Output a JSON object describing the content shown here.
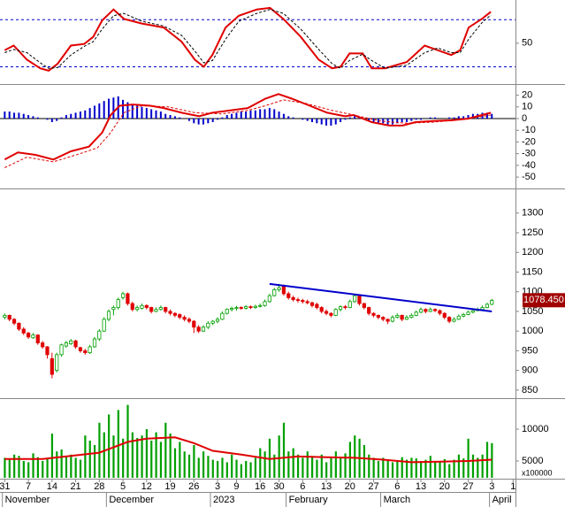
{
  "x_axis": {
    "xlim": [
      -1,
      108
    ],
    "xticks": [
      {
        "value": 0,
        "label": "31"
      },
      {
        "value": 5,
        "label": "7"
      },
      {
        "value": 10,
        "label": "14"
      },
      {
        "value": 15,
        "label": "21"
      },
      {
        "value": 20,
        "label": "28"
      },
      {
        "value": 25,
        "label": "5"
      },
      {
        "value": 30,
        "label": "12"
      },
      {
        "value": 35,
        "label": "19"
      },
      {
        "value": 40,
        "label": "26"
      },
      {
        "value": 45,
        "label": "3"
      },
      {
        "value": 49,
        "label": "9"
      },
      {
        "value": 54,
        "label": "16"
      },
      {
        "value": 58,
        "label": "30"
      },
      {
        "value": 63,
        "label": "6"
      },
      {
        "value": 68,
        "label": "13"
      },
      {
        "value": 73,
        "label": "20"
      },
      {
        "value": 78,
        "label": "27"
      },
      {
        "value": 83,
        "label": "6"
      },
      {
        "value": 88,
        "label": "13"
      },
      {
        "value": 93,
        "label": "20"
      },
      {
        "value": 98,
        "label": "27"
      },
      {
        "value": 103,
        "label": "3"
      },
      {
        "value": 107.5,
        "label": "1"
      }
    ],
    "months": [
      {
        "value": -0.5,
        "label": "November"
      },
      {
        "value": 21.5,
        "label": "December"
      },
      {
        "value": 43.5,
        "label": "2023"
      },
      {
        "value": 59.5,
        "label": "February"
      },
      {
        "value": 79.5,
        "label": "March"
      },
      {
        "value": 102.5,
        "label": "April"
      }
    ]
  },
  "chart_data": [
    {
      "type": "line",
      "ylim": [
        -2,
        105
      ],
      "yticks": [
        50
      ],
      "reference_lines": [
        80,
        20
      ],
      "reference_color": "#0000cc",
      "series": [
        {
          "color": "#e00000",
          "dash": false,
          "x": [
            0,
            1.9,
            4.7,
            7.5,
            9.3,
            11.2,
            14,
            16.8,
            18.7,
            20.6,
            23,
            25.2,
            29,
            33.6,
            37.4,
            40.2,
            42.1,
            43.9,
            46.7,
            49.5,
            53.3,
            56.1,
            58.9,
            62.6,
            66.4,
            69.2,
            71,
            72.9,
            75.7,
            77.6,
            80.4,
            85,
            88.8,
            91.6,
            94.4,
            96.3,
            98.1,
            100.9,
            102.8
          ],
          "values": [
            41,
            47,
            29,
            18,
            15,
            24,
            47,
            49,
            58,
            79,
            93,
            81,
            75,
            70,
            52,
            29,
            20,
            35,
            70,
            85,
            93,
            95,
            81,
            58,
            29,
            18,
            20,
            37,
            37,
            18,
            18,
            26,
            47,
            41,
            35,
            41,
            70,
            81,
            90
          ]
        },
        {
          "color": "#000000",
          "dash": true,
          "x": [
            0,
            1.9,
            4.7,
            7.5,
            9.3,
            11.2,
            14,
            16.8,
            18.7,
            20.6,
            23,
            25.2,
            29,
            33.6,
            37.4,
            40.2,
            42.1,
            43.9,
            46.7,
            49.5,
            53.3,
            56.1,
            58.9,
            62.6,
            66.4,
            69.2,
            71,
            72.9,
            75.7,
            77.6,
            80.4,
            85,
            88.8,
            91.6,
            94.4,
            96.3,
            98.1,
            100.9,
            102.8
          ],
          "values": [
            38,
            42,
            38,
            25,
            18,
            19,
            35,
            46,
            52,
            68,
            85,
            88,
            78,
            72,
            60,
            40,
            25,
            28,
            55,
            78,
            88,
            93,
            88,
            68,
            42,
            24,
            18,
            28,
            36,
            28,
            18,
            22,
            38,
            44,
            38,
            38,
            55,
            76,
            86
          ]
        }
      ]
    },
    {
      "type": "macd",
      "ylim": [
        -59,
        28
      ],
      "yticks": [
        20,
        10,
        0,
        -10,
        -20,
        -30,
        -40,
        -50
      ],
      "histogram_color": "#0000cc",
      "histogram": [
        6,
        6,
        5,
        5,
        4,
        3,
        2,
        1,
        0,
        -1,
        -3,
        -2,
        1,
        3,
        4,
        5,
        6,
        7,
        9,
        11,
        13,
        15,
        17,
        18,
        19,
        16,
        14,
        12,
        11,
        10,
        9,
        8,
        7,
        6,
        4,
        3,
        2,
        1,
        0,
        -2,
        -4,
        -5,
        -5,
        -4,
        -3,
        -1,
        1,
        3,
        4,
        5,
        6,
        6,
        7,
        7,
        8,
        8,
        9,
        8,
        6,
        4,
        2,
        1,
        0,
        -1,
        -2,
        -3,
        -4,
        -5,
        -6,
        -6,
        -5,
        -3,
        -1,
        1,
        2,
        1,
        0,
        -2,
        -3,
        -4,
        -4,
        -5,
        -5,
        -4,
        -3,
        -3,
        -2,
        -1,
        -1,
        0,
        1,
        1,
        0,
        0,
        1,
        1,
        2,
        2,
        3,
        4,
        4,
        5,
        5,
        4
      ],
      "series": [
        {
          "color": "#e00000",
          "dash": false,
          "x": [
            0,
            2.8,
            6.5,
            10.3,
            14,
            17.8,
            20.6,
            22.4,
            24.3,
            27.1,
            30.8,
            33.6,
            37.4,
            41.1,
            43.9,
            47.7,
            51.4,
            55.1,
            57.9,
            60.7,
            64.5,
            68.2,
            72,
            73.8,
            77.6,
            81.3,
            84.1,
            86.9,
            90.7,
            94.4,
            98.1,
            100.9,
            102.8
          ],
          "values": [
            -35,
            -29,
            -31,
            -35,
            -28,
            -24,
            -12,
            3,
            11,
            12,
            11,
            9,
            5,
            2,
            5,
            7,
            9,
            17,
            21,
            17,
            11,
            5,
            2,
            3,
            -3,
            -6,
            -6,
            -3,
            -2,
            -1.5,
            0,
            3,
            5
          ]
        },
        {
          "color": "#e00000",
          "dash": true,
          "x": [
            0,
            4.7,
            10.3,
            15.9,
            19.6,
            22.4,
            25.2,
            29,
            34.6,
            40.2,
            45.8,
            51.4,
            55.1,
            58.9,
            63.6,
            69.2,
            73.8,
            79.4,
            85,
            90.7,
            96.3,
            102.8
          ],
          "values": [
            -42,
            -33,
            -37,
            -30,
            -25,
            -12,
            5,
            11,
            10,
            5,
            4,
            7,
            11,
            16,
            13,
            7,
            3,
            -2,
            -4,
            -3,
            -1,
            3
          ]
        }
      ]
    },
    {
      "type": "candlestick",
      "ylim": [
        834,
        1358
      ],
      "yticks": [
        850,
        900,
        950,
        1000,
        1050,
        1100,
        1150,
        1200,
        1250,
        1300
      ],
      "up_color": "#00a000",
      "down_color": "#e00000",
      "open": [
        1035,
        1040,
        1030,
        1020,
        1005,
        995,
        983,
        990,
        970,
        960,
        930,
        900,
        940,
        962,
        968,
        975,
        958,
        950,
        945,
        960,
        980,
        1000,
        1030,
        1055,
        1060,
        1085,
        1095,
        1070,
        1055,
        1058,
        1065,
        1060,
        1050,
        1055,
        1060,
        1050,
        1045,
        1042,
        1035,
        1030,
        1025,
        1010,
        1000,
        1010,
        1020,
        1025,
        1030,
        1045,
        1055,
        1058,
        1060,
        1058,
        1062,
        1060,
        1063,
        1065,
        1075,
        1090,
        1105,
        1115,
        1095,
        1085,
        1080,
        1078,
        1075,
        1072,
        1068,
        1060,
        1050,
        1045,
        1040,
        1055,
        1062,
        1060,
        1075,
        1090,
        1070,
        1060,
        1045,
        1040,
        1035,
        1030,
        1025,
        1035,
        1040,
        1030,
        1035,
        1040,
        1048,
        1055,
        1050,
        1055,
        1052,
        1045,
        1035,
        1025,
        1030,
        1038,
        1042,
        1048,
        1052,
        1055,
        1060,
        1068
      ],
      "high": [
        1045,
        1042,
        1033,
        1022,
        1010,
        998,
        995,
        992,
        975,
        962,
        945,
        945,
        968,
        975,
        980,
        978,
        960,
        955,
        965,
        985,
        1005,
        1035,
        1055,
        1065,
        1085,
        1100,
        1098,
        1075,
        1065,
        1070,
        1068,
        1062,
        1060,
        1065,
        1062,
        1055,
        1048,
        1045,
        1040,
        1035,
        1028,
        1015,
        1015,
        1025,
        1028,
        1035,
        1050,
        1058,
        1062,
        1064,
        1063,
        1066,
        1065,
        1067,
        1070,
        1080,
        1095,
        1110,
        1120,
        1118,
        1100,
        1090,
        1085,
        1082,
        1080,
        1075,
        1072,
        1063,
        1055,
        1048,
        1058,
        1065,
        1066,
        1080,
        1095,
        1092,
        1072,
        1062,
        1048,
        1042,
        1038,
        1032,
        1040,
        1045,
        1042,
        1040,
        1045,
        1052,
        1060,
        1058,
        1060,
        1058,
        1055,
        1048,
        1038,
        1035,
        1042,
        1046,
        1052,
        1056,
        1060,
        1065,
        1072,
        1082
      ],
      "low": [
        1030,
        1025,
        1015,
        1000,
        990,
        980,
        980,
        965,
        955,
        930,
        880,
        895,
        935,
        958,
        965,
        955,
        945,
        940,
        942,
        958,
        975,
        998,
        1025,
        1040,
        1055,
        1080,
        1065,
        1050,
        1050,
        1055,
        1055,
        1045,
        1048,
        1052,
        1045,
        1040,
        1035,
        1030,
        1025,
        1020,
        995,
        995,
        998,
        1005,
        1015,
        1020,
        1028,
        1042,
        1050,
        1052,
        1054,
        1055,
        1056,
        1057,
        1060,
        1062,
        1072,
        1088,
        1100,
        1090,
        1080,
        1075,
        1072,
        1070,
        1068,
        1060,
        1055,
        1045,
        1040,
        1035,
        1038,
        1050,
        1055,
        1058,
        1072,
        1065,
        1055,
        1040,
        1035,
        1030,
        1025,
        1018,
        1022,
        1032,
        1025,
        1028,
        1032,
        1038,
        1045,
        1045,
        1048,
        1048,
        1040,
        1030,
        1020,
        1022,
        1028,
        1035,
        1040,
        1045,
        1050,
        1052,
        1058,
        1066
      ],
      "close": [
        1040,
        1030,
        1020,
        1005,
        995,
        985,
        990,
        970,
        960,
        940,
        890,
        940,
        965,
        970,
        975,
        960,
        950,
        945,
        960,
        980,
        1000,
        1030,
        1050,
        1060,
        1080,
        1095,
        1070,
        1055,
        1060,
        1065,
        1060,
        1050,
        1055,
        1060,
        1050,
        1045,
        1040,
        1035,
        1030,
        1025,
        1010,
        1000,
        1010,
        1020,
        1025,
        1030,
        1045,
        1055,
        1058,
        1060,
        1058,
        1062,
        1060,
        1063,
        1065,
        1075,
        1090,
        1105,
        1110,
        1095,
        1085,
        1080,
        1078,
        1075,
        1072,
        1065,
        1060,
        1050,
        1045,
        1040,
        1055,
        1062,
        1060,
        1075,
        1090,
        1070,
        1060,
        1045,
        1040,
        1035,
        1030,
        1025,
        1035,
        1040,
        1030,
        1035,
        1040,
        1048,
        1055,
        1050,
        1055,
        1052,
        1045,
        1035,
        1025,
        1030,
        1038,
        1042,
        1048,
        1052,
        1055,
        1060,
        1068,
        1078
      ],
      "trendline": {
        "color": "#0000cc",
        "x": [
          56,
          103
        ],
        "values": [
          1120,
          1050
        ]
      },
      "last_price": {
        "value": 1078.45,
        "label": "1078.450"
      },
      "last_price_color": "#a00000"
    },
    {
      "type": "bar",
      "ylim": [
        2360,
        14580
      ],
      "yticks": [
        5000,
        10000
      ],
      "color": "#00a000",
      "unit_label": "x100000",
      "values": [
        5500,
        5200,
        6000,
        5800,
        5000,
        4800,
        6200,
        5600,
        5000,
        5400,
        9300,
        6500,
        6800,
        5800,
        6000,
        5500,
        5200,
        9000,
        8200,
        7500,
        11000,
        9500,
        12300,
        9000,
        13000,
        8500,
        13800,
        9500,
        8600,
        9000,
        10000,
        8200,
        9500,
        8000,
        11000,
        9300,
        7000,
        8000,
        6500,
        6000,
        7500,
        5500,
        6500,
        5800,
        5200,
        5000,
        5500,
        4800,
        6000,
        5200,
        4500,
        5000,
        4800,
        5500,
        7000,
        6500,
        8500,
        6000,
        9000,
        11000,
        6500,
        7000,
        6000,
        5500,
        6500,
        5800,
        5200,
        6000,
        4800,
        5600,
        6500,
        5500,
        6200,
        8000,
        9000,
        8500,
        7500,
        6000,
        5500,
        5000,
        5500,
        5200,
        4800,
        5000,
        5600,
        5200,
        5500,
        5400,
        5000,
        5200,
        5800,
        5000,
        4800,
        5300,
        4500,
        5200,
        6000,
        5400,
        8500,
        6000,
        5500,
        6000,
        8000,
        7800
      ],
      "series": [
        {
          "color": "#e00000",
          "dash": false,
          "x": [
            0,
            8,
            14,
            20,
            26,
            30,
            36,
            40,
            44,
            50,
            56,
            62,
            68,
            74,
            80,
            86,
            92,
            98,
            103
          ],
          "values": [
            5300,
            5300,
            5800,
            6300,
            8000,
            8500,
            8700,
            7800,
            6600,
            6000,
            5300,
            5700,
            5600,
            5500,
            5200,
            4800,
            4900,
            5000,
            5200
          ]
        }
      ]
    }
  ]
}
